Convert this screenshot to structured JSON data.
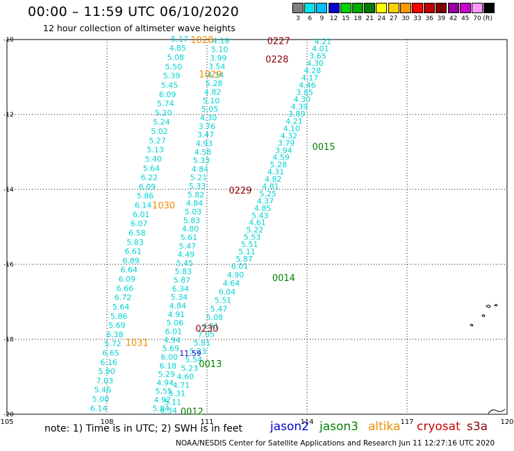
{
  "header": {
    "title": "00:00 – 11:59 UTC 06/10/2020",
    "subtitle": "12 hour collection of altimeter wave heights"
  },
  "legend": {
    "unit": "(ft)",
    "bins": [
      {
        "label": "3",
        "color": "#808080"
      },
      {
        "label": "6",
        "color": "#00e5e5"
      },
      {
        "label": "9",
        "color": "#00bfff"
      },
      {
        "label": "12",
        "color": "#0000cc"
      },
      {
        "label": "15",
        "color": "#00d000"
      },
      {
        "label": "18",
        "color": "#00a800"
      },
      {
        "label": "21",
        "color": "#007d00"
      },
      {
        "label": "24",
        "color": "#ffff00"
      },
      {
        "label": "27",
        "color": "#ffd000"
      },
      {
        "label": "30",
        "color": "#ff9900"
      },
      {
        "label": "33",
        "color": "#ff0000"
      },
      {
        "label": "36",
        "color": "#c00000"
      },
      {
        "label": "39",
        "color": "#800000"
      },
      {
        "label": "42",
        "color": "#990099"
      },
      {
        "label": "45",
        "color": "#cc00cc"
      },
      {
        "label": "70",
        "color": "#ff99ff"
      },
      {
        "label": "",
        "color": "#000000"
      }
    ]
  },
  "map": {
    "lon_ticks": [
      "105",
      "108",
      "111",
      "114",
      "117",
      "120"
    ],
    "lat_ticks": [
      "-10",
      "-12",
      "-14",
      "-16",
      "-18",
      "-20"
    ],
    "lon_range": [
      105,
      120
    ],
    "lat_range": [
      -20,
      -10
    ],
    "colors": {
      "cyan": "#00d2d2",
      "blue": "#0000cc",
      "orange": "#f08c00",
      "darkred": "#8b0000",
      "green": "#008000"
    }
  },
  "tracks": [
    {
      "name": "track-a",
      "color": "cyan",
      "start": [
        110.18,
        -9.98
      ],
      "end": [
        107.75,
        -19.84
      ],
      "values": [
        "5.17",
        "4.85",
        "5.08",
        "5.50",
        "5.39",
        "5.45",
        "6.09",
        "5.74",
        "5.20",
        "5.24",
        "5.02",
        "5.27",
        "5.13",
        "5.40",
        "5.64",
        "6.22",
        "6.09",
        "5.86",
        "6.14",
        "6.01",
        "6.07",
        "6.58",
        "5.83",
        "6.61",
        "6.89",
        "6.64",
        "6.09",
        "6.66",
        "6.72",
        "5.64",
        "5.86",
        "5.69",
        "6.38",
        "5.72",
        "6.65",
        "6.16",
        "5.90",
        "7.03",
        "5.46",
        "5.00",
        "6.14"
      ]
    },
    {
      "name": "track-b",
      "color": "cyan",
      "start": [
        111.42,
        -10.03
      ],
      "end": [
        109.62,
        -19.84
      ],
      "values": [
        "4.18",
        "5.10",
        "3.99",
        "3.54",
        "4.34",
        "5.28",
        "4.82",
        "5.10",
        "5.05",
        "4.30",
        "3.76",
        "3.47",
        "4.93",
        "4.58",
        "5.33",
        "4.84",
        "5.21",
        "5.33",
        "5.82",
        "4.84",
        "5.03",
        "5.83",
        "4.80",
        "5.61",
        "5.47",
        "4.49",
        "5.45",
        "5.83",
        "5.87",
        "6.34",
        "5.34",
        "4.84",
        "4.91",
        "5.06",
        "6.01",
        "4.94",
        "5.69",
        "6.00",
        "6.18",
        "5.29",
        "4.94",
        "5.55",
        "4.92",
        "5.84"
      ]
    },
    {
      "name": "track-c",
      "color": "cyan",
      "start": [
        111.98,
        -16.05
      ],
      "end": [
        109.85,
        -19.9
      ],
      "values": [
        "6.01",
        "4.90",
        "4.64",
        "6.04",
        "5.51",
        "5.47",
        "5.08",
        "4.91",
        "7.05",
        "5.81",
        "5.23",
        "5.54",
        "5.23",
        "4.60",
        "4.71",
        "5.31",
        "5.11",
        "6.34"
      ]
    },
    {
      "name": "track-d",
      "color": "cyan",
      "start": [
        114.48,
        -10.05
      ],
      "end": [
        112.12,
        -15.85
      ],
      "values": [
        "4.21",
        "4.01",
        "3.65",
        "4.30",
        "4.28",
        "4.17",
        "4.46",
        "3.85",
        "4.30",
        "4.39",
        "3.89",
        "4.21",
        "4.10",
        "4.32",
        "3.79",
        "3.94",
        "4.59",
        "5.28",
        "4.31",
        "4.82",
        "4.81",
        "5.25",
        "4.37",
        "4.85",
        "5.43",
        "4.61",
        "5.22",
        "5.53",
        "5.51",
        "5.11",
        "5.87"
      ]
    }
  ],
  "special": [
    {
      "text": "11.59",
      "lon": 110.5,
      "lat": -18.37,
      "color": "blue"
    }
  ],
  "pass_labels": [
    {
      "text": "1028",
      "lon": 110.85,
      "lat": -10.0,
      "color": "orange"
    },
    {
      "text": "1029",
      "lon": 111.1,
      "lat": -10.92,
      "color": "orange"
    },
    {
      "text": "1030",
      "lon": 109.7,
      "lat": -14.42,
      "color": "orange"
    },
    {
      "text": "1031",
      "lon": 108.9,
      "lat": -18.08,
      "color": "orange"
    },
    {
      "text": "0227",
      "lon": 113.15,
      "lat": -10.03,
      "color": "darkred"
    },
    {
      "text": "0228",
      "lon": 113.1,
      "lat": -10.52,
      "color": "darkred"
    },
    {
      "text": "0229",
      "lon": 112.0,
      "lat": -14.02,
      "color": "darkred"
    },
    {
      "text": "0230",
      "lon": 111.0,
      "lat": -17.7,
      "color": "darkred"
    },
    {
      "text": "0015",
      "lon": 114.5,
      "lat": -12.85,
      "color": "green"
    },
    {
      "text": "0014",
      "lon": 113.3,
      "lat": -16.35,
      "color": "green"
    },
    {
      "text": "0013",
      "lon": 111.1,
      "lat": -18.65,
      "color": "green"
    },
    {
      "text": "0012",
      "lon": 110.55,
      "lat": -19.92,
      "color": "green"
    }
  ],
  "note": "note: 1) Time is in UTC; 2) SWH is in feet",
  "satellites": [
    {
      "name": "jason2",
      "color": "#0000cc"
    },
    {
      "name": "jason3",
      "color": "#008000"
    },
    {
      "name": "altika",
      "color": "#f08c00"
    },
    {
      "name": "cryosat",
      "color": "#cc0000"
    },
    {
      "name": "s3a",
      "color": "#8b0000"
    }
  ],
  "footer": "NOAA/NESDIS Center for Satellite Applications and Research   Jun 11 12:27:16 UTC 2020"
}
